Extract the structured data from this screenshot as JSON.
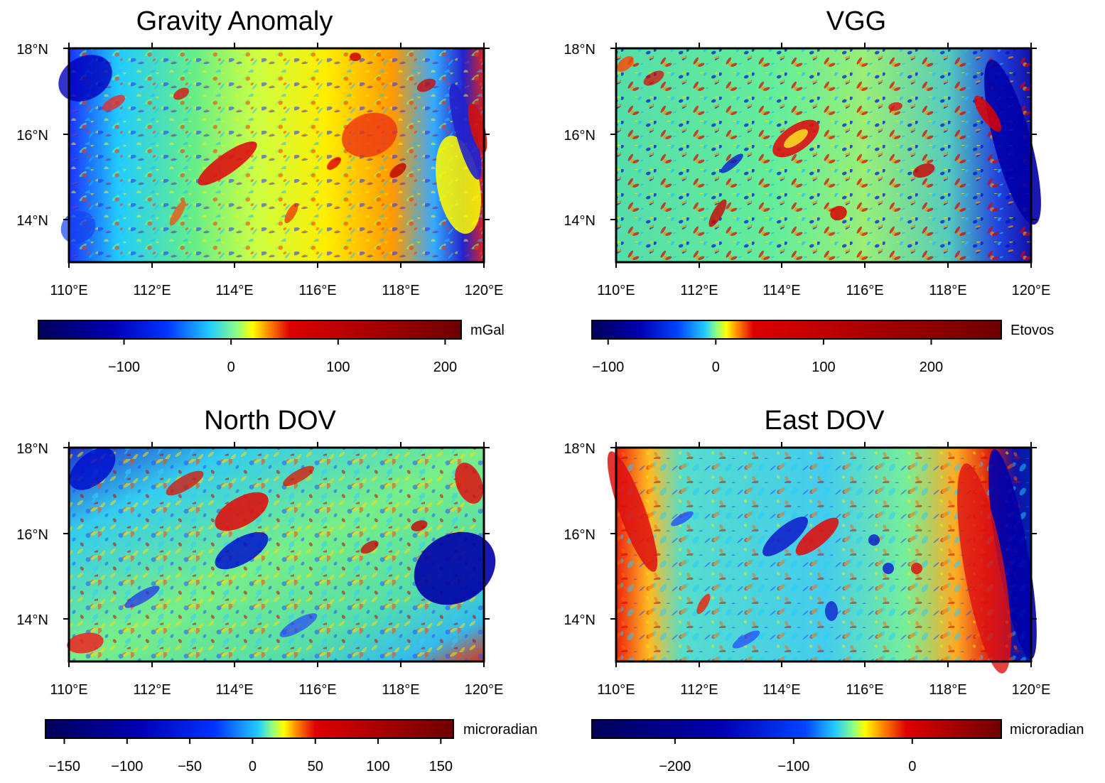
{
  "panels": [
    {
      "title": "Gravity Anomaly",
      "lat_labels": [
        "18°N",
        "16°N",
        "14°N"
      ],
      "lon_labels": [
        "110°E",
        "112°E",
        "114°E",
        "116°E",
        "118°E",
        "120°E"
      ],
      "colorbar": {
        "unit": "mGal",
        "range": [
          -180,
          215
        ],
        "ticks": [
          -100,
          0,
          100,
          200
        ],
        "tick_labels": [
          "−100",
          "0",
          "100",
          "200"
        ],
        "stops": [
          {
            "v": -180,
            "c": "#00005a"
          },
          {
            "v": -110,
            "c": "#0000b4"
          },
          {
            "v": -60,
            "c": "#0033ff"
          },
          {
            "v": -20,
            "c": "#22ccff"
          },
          {
            "v": 5,
            "c": "#88ff88"
          },
          {
            "v": 20,
            "c": "#ffff00"
          },
          {
            "v": 35,
            "c": "#ff8800"
          },
          {
            "v": 55,
            "c": "#dd0000"
          },
          {
            "v": 215,
            "c": "#6e0000"
          }
        ]
      }
    },
    {
      "title": "VGG",
      "lat_labels": [
        "18°N",
        "16°N",
        "14°N"
      ],
      "lon_labels": [
        "110°E",
        "112°E",
        "114°E",
        "116°E",
        "118°E",
        "120°E"
      ],
      "colorbar": {
        "unit": "Etovos",
        "range": [
          -115,
          265
        ],
        "ticks": [
          -100,
          0,
          100,
          200
        ],
        "tick_labels": [
          "−100",
          "0",
          "100",
          "200"
        ],
        "stops": [
          {
            "v": -115,
            "c": "#00005a"
          },
          {
            "v": -70,
            "c": "#0000b4"
          },
          {
            "v": -35,
            "c": "#0044ff"
          },
          {
            "v": -10,
            "c": "#22ccff"
          },
          {
            "v": 0,
            "c": "#88ff88"
          },
          {
            "v": 10,
            "c": "#ffff00"
          },
          {
            "v": 20,
            "c": "#ff8800"
          },
          {
            "v": 35,
            "c": "#dd0000"
          },
          {
            "v": 265,
            "c": "#6e0000"
          }
        ]
      }
    },
    {
      "title": "North DOV",
      "lat_labels": [
        "18°N",
        "16°N",
        "14°N"
      ],
      "lon_labels": [
        "110°E",
        "112°E",
        "114°E",
        "116°E",
        "118°E",
        "120°E"
      ],
      "colorbar": {
        "unit": "microradian",
        "range": [
          -165,
          160
        ],
        "ticks": [
          -150,
          -100,
          -50,
          0,
          50,
          100,
          150
        ],
        "tick_labels": [
          "−150",
          "−100",
          "−50",
          "0",
          "50",
          "100",
          "150"
        ],
        "stops": [
          {
            "v": -165,
            "c": "#00005a"
          },
          {
            "v": -90,
            "c": "#0000b4"
          },
          {
            "v": -30,
            "c": "#0033ff"
          },
          {
            "v": 5,
            "c": "#22ccff"
          },
          {
            "v": 15,
            "c": "#88ff88"
          },
          {
            "v": 25,
            "c": "#ffff00"
          },
          {
            "v": 35,
            "c": "#ff8800"
          },
          {
            "v": 50,
            "c": "#dd0000"
          },
          {
            "v": 160,
            "c": "#6e0000"
          }
        ]
      }
    },
    {
      "title": "East DOV",
      "lat_labels": [
        "18°N",
        "16°N",
        "14°N"
      ],
      "lon_labels": [
        "110°E",
        "112°E",
        "114°E",
        "116°E",
        "118°E",
        "120°E"
      ],
      "colorbar": {
        "unit": "microradian",
        "range": [
          -270,
          75
        ],
        "ticks": [
          -200,
          -100,
          0
        ],
        "tick_labels": [
          "−200",
          "−100",
          "0"
        ],
        "stops": [
          {
            "v": -270,
            "c": "#00005a"
          },
          {
            "v": -160,
            "c": "#0000b4"
          },
          {
            "v": -90,
            "c": "#0044ff"
          },
          {
            "v": -65,
            "c": "#22ccff"
          },
          {
            "v": -50,
            "c": "#88ff88"
          },
          {
            "v": -40,
            "c": "#ffff00"
          },
          {
            "v": -25,
            "c": "#ff8800"
          },
          {
            "v": -5,
            "c": "#dd0000"
          },
          {
            "v": 75,
            "c": "#6e0000"
          }
        ]
      }
    }
  ]
}
